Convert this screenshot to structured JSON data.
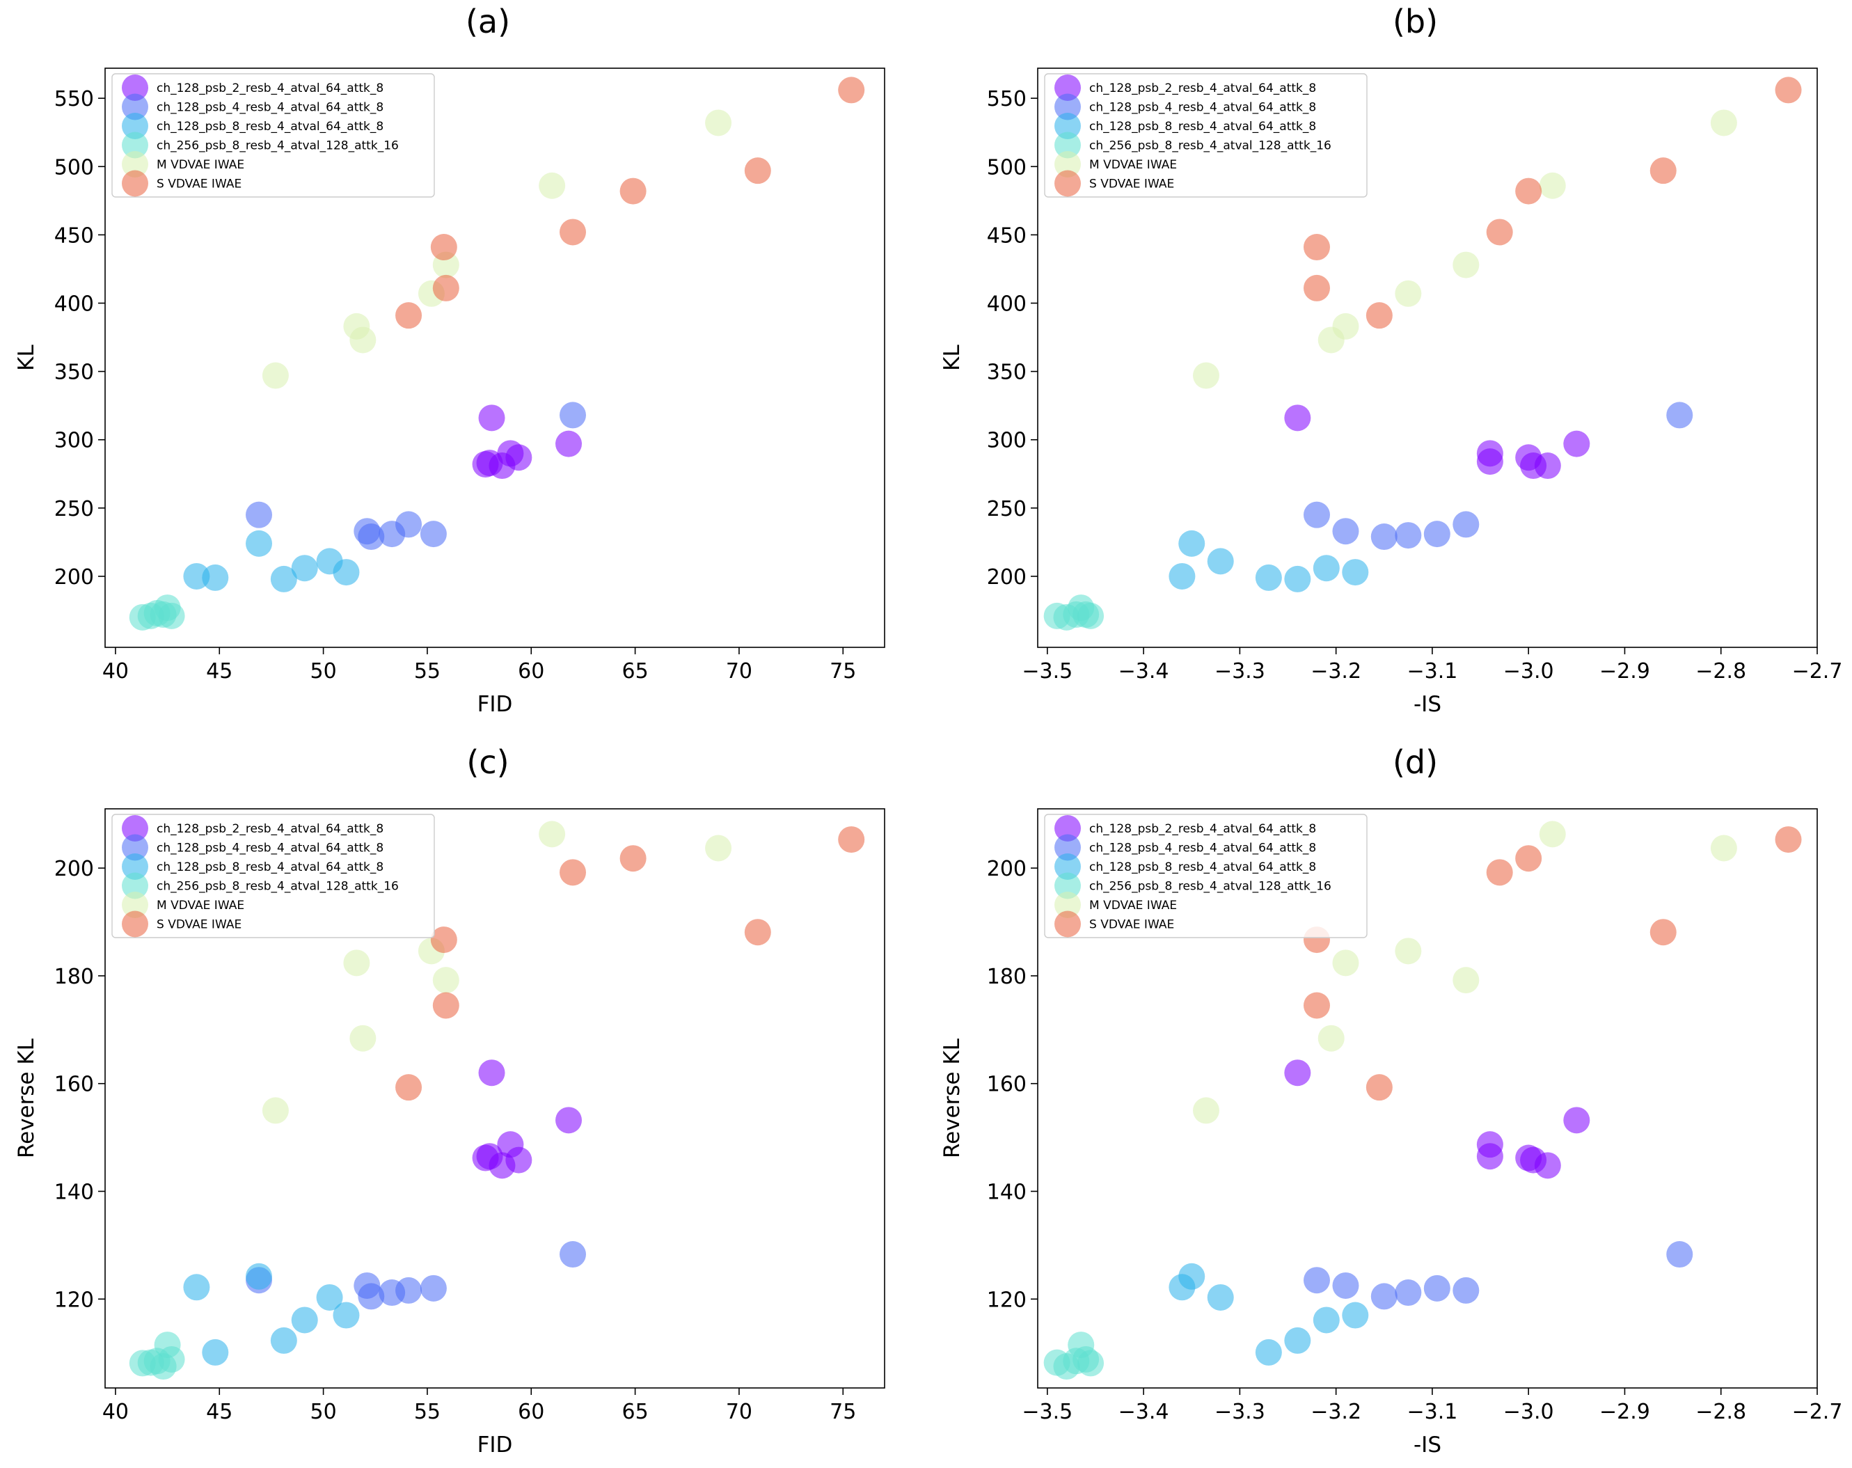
{
  "series_styles": [
    {
      "name": "ch_128_psb_2_resb_4_atval_64_attk_8",
      "color": "#8000ff"
    },
    {
      "name": "ch_128_psb_4_resb_4_atval_64_attk_8",
      "color": "#4a6cf6"
    },
    {
      "name": "ch_128_psb_8_resb_4_atval_64_attk_8",
      "color": "#2ab0eb"
    },
    {
      "name": "ch_256_psb_8_resb_4_atval_128_attk_16",
      "color": "#5ee0d0"
    },
    {
      "name": "M VDVAE IWAE",
      "color": "#d8f0b0"
    },
    {
      "name": "S VDVAE IWAE",
      "color": "#ea6240"
    }
  ],
  "chart_data": [
    {
      "panel": "(a)",
      "type": "scatter",
      "xlabel": "FID",
      "ylabel": "KL",
      "xlim": [
        39.5,
        77
      ],
      "ylim": [
        148,
        572
      ],
      "xticks": [
        40,
        45,
        50,
        55,
        60,
        65,
        70,
        75
      ],
      "xtick_labels": [
        "40",
        "45",
        "50",
        "55",
        "60",
        "65",
        "70",
        "75"
      ],
      "yticks": [
        200,
        250,
        300,
        350,
        400,
        450,
        500,
        550
      ],
      "ytick_labels": [
        "200",
        "250",
        "300",
        "350",
        "400",
        "450",
        "500",
        "550"
      ],
      "legend_position": "upper-left",
      "series": [
        {
          "name": "ch_128_psb_2_resb_4_atval_64_attk_8",
          "x": [
            58.1,
            57.8,
            58.0,
            58.6,
            59.0,
            59.4,
            61.8
          ],
          "y": [
            316,
            282,
            283,
            281,
            290,
            287,
            297
          ]
        },
        {
          "name": "ch_128_psb_4_resb_4_atval_64_attk_8",
          "x": [
            46.9,
            52.1,
            52.3,
            53.3,
            54.1,
            55.3,
            62.0
          ],
          "y": [
            245,
            233,
            229,
            231,
            238,
            231,
            318
          ]
        },
        {
          "name": "ch_128_psb_8_resb_4_atval_64_attk_8",
          "x": [
            43.9,
            44.8,
            46.9,
            48.1,
            49.1,
            50.3,
            51.1
          ],
          "y": [
            200,
            199,
            224,
            198,
            206,
            211,
            203
          ]
        },
        {
          "name": "ch_256_psb_8_resb_4_atval_128_attk_16",
          "x": [
            41.3,
            41.7,
            42.0,
            42.3,
            42.5,
            42.7
          ],
          "y": [
            170,
            171,
            173,
            172,
            177,
            171
          ]
        },
        {
          "name": "M VDVAE IWAE",
          "x": [
            47.7,
            51.6,
            51.9,
            55.2,
            55.9,
            61.0,
            69.0
          ],
          "y": [
            347,
            383,
            373,
            407,
            428,
            486,
            532
          ]
        },
        {
          "name": "S VDVAE IWAE",
          "x": [
            54.1,
            55.8,
            55.9,
            62.0,
            64.9,
            70.9,
            75.4
          ],
          "y": [
            391,
            441,
            411,
            452,
            482,
            497,
            556
          ]
        }
      ]
    },
    {
      "panel": "(b)",
      "type": "scatter",
      "xlabel": "-IS",
      "ylabel": "KL",
      "xlim": [
        -3.51,
        -2.7
      ],
      "ylim": [
        148,
        572
      ],
      "xticks": [
        -3.5,
        -3.4,
        -3.3,
        -3.2,
        -3.1,
        -3.0,
        -2.9,
        -2.8,
        -2.7
      ],
      "xtick_labels": [
        "−3.5",
        "−3.4",
        "−3.3",
        "−3.2",
        "−3.1",
        "−3.0",
        "−2.9",
        "−2.8",
        "−2.7"
      ],
      "yticks": [
        200,
        250,
        300,
        350,
        400,
        450,
        500,
        550
      ],
      "ytick_labels": [
        "200",
        "250",
        "300",
        "350",
        "400",
        "450",
        "500",
        "550"
      ],
      "legend_position": "upper-left",
      "series": [
        {
          "name": "ch_128_psb_2_resb_4_atval_64_attk_8",
          "x": [
            -3.24,
            -3.04,
            -3.04,
            -3.0,
            -2.995,
            -2.98,
            -2.95
          ],
          "y": [
            316,
            290,
            284,
            287,
            281,
            281,
            297
          ]
        },
        {
          "name": "ch_128_psb_4_resb_4_atval_64_attk_8",
          "x": [
            -3.22,
            -3.19,
            -3.15,
            -3.125,
            -3.095,
            -3.065,
            -2.843
          ],
          "y": [
            245,
            233,
            229,
            230,
            231,
            238,
            318
          ]
        },
        {
          "name": "ch_128_psb_8_resb_4_atval_64_attk_8",
          "x": [
            -3.36,
            -3.35,
            -3.32,
            -3.27,
            -3.24,
            -3.21,
            -3.18
          ],
          "y": [
            200,
            224,
            211,
            199,
            198,
            206,
            203
          ]
        },
        {
          "name": "ch_256_psb_8_resb_4_atval_128_attk_16",
          "x": [
            -3.49,
            -3.48,
            -3.47,
            -3.465,
            -3.46,
            -3.455
          ],
          "y": [
            171,
            170,
            172,
            177,
            172,
            171
          ]
        },
        {
          "name": "M VDVAE IWAE",
          "x": [
            -3.335,
            -3.205,
            -3.19,
            -3.125,
            -3.065,
            -2.975,
            -2.797
          ],
          "y": [
            347,
            373,
            383,
            407,
            428,
            486,
            532
          ]
        },
        {
          "name": "S VDVAE IWAE",
          "x": [
            -3.22,
            -3.22,
            -3.155,
            -3.03,
            -3.0,
            -2.86,
            -2.73
          ],
          "y": [
            441,
            411,
            391,
            452,
            482,
            497,
            556
          ]
        }
      ]
    },
    {
      "panel": "(c)",
      "type": "scatter",
      "xlabel": "FID",
      "ylabel": "Reverse KL",
      "xlim": [
        39.5,
        77
      ],
      "ylim": [
        103.5,
        211
      ],
      "xticks": [
        40,
        45,
        50,
        55,
        60,
        65,
        70,
        75
      ],
      "xtick_labels": [
        "40",
        "45",
        "50",
        "55",
        "60",
        "65",
        "70",
        "75"
      ],
      "yticks": [
        120,
        140,
        160,
        180,
        200
      ],
      "ytick_labels": [
        "120",
        "140",
        "160",
        "180",
        "200"
      ],
      "legend_position": "upper-left",
      "series": [
        {
          "name": "ch_128_psb_2_resb_4_atval_64_attk_8",
          "x": [
            58.1,
            57.8,
            58.0,
            58.6,
            59.0,
            59.4,
            61.8
          ],
          "y": [
            162,
            146.2,
            146.5,
            144.8,
            148.7,
            145.8,
            153.2
          ]
        },
        {
          "name": "ch_128_psb_4_resb_4_atval_64_attk_8",
          "x": [
            46.9,
            52.1,
            52.3,
            53.3,
            54.1,
            55.3,
            62.0
          ],
          "y": [
            123.5,
            122.5,
            120.5,
            121.2,
            121.6,
            122.0,
            128.3
          ]
        },
        {
          "name": "ch_128_psb_8_resb_4_atval_64_attk_8",
          "x": [
            43.9,
            44.8,
            46.9,
            48.1,
            49.1,
            50.3,
            51.1
          ],
          "y": [
            122.2,
            110.1,
            124.2,
            112.3,
            116.1,
            120.3,
            117.0
          ]
        },
        {
          "name": "ch_256_psb_8_resb_4_atval_128_attk_16",
          "x": [
            41.3,
            41.7,
            42.0,
            42.3,
            42.5,
            42.7
          ],
          "y": [
            108.1,
            108.2,
            108.5,
            107.5,
            111.5,
            108.8
          ]
        },
        {
          "name": "M VDVAE IWAE",
          "x": [
            47.7,
            51.6,
            51.9,
            55.2,
            55.9,
            61.0,
            69.0
          ],
          "y": [
            155.0,
            182.4,
            168.4,
            184.6,
            179.2,
            206.3,
            203.7
          ]
        },
        {
          "name": "S VDVAE IWAE",
          "x": [
            54.1,
            55.8,
            55.9,
            62.0,
            64.9,
            70.9,
            75.4
          ],
          "y": [
            159.3,
            186.7,
            174.5,
            199.2,
            201.8,
            188.1,
            205.3
          ]
        }
      ]
    },
    {
      "panel": "(d)",
      "type": "scatter",
      "xlabel": "-IS",
      "ylabel": "Reverse KL",
      "xlim": [
        -3.51,
        -2.7
      ],
      "ylim": [
        103.5,
        211
      ],
      "xticks": [
        -3.5,
        -3.4,
        -3.3,
        -3.2,
        -3.1,
        -3.0,
        -2.9,
        -2.8,
        -2.7
      ],
      "xtick_labels": [
        "−3.5",
        "−3.4",
        "−3.3",
        "−3.2",
        "−3.1",
        "−3.0",
        "−2.9",
        "−2.8",
        "−2.7"
      ],
      "yticks": [
        120,
        140,
        160,
        180,
        200
      ],
      "ytick_labels": [
        "120",
        "140",
        "160",
        "180",
        "200"
      ],
      "legend_position": "upper-left",
      "series": [
        {
          "name": "ch_128_psb_2_resb_4_atval_64_attk_8",
          "x": [
            -3.24,
            -3.04,
            -3.04,
            -3.0,
            -2.995,
            -2.98,
            -2.95
          ],
          "y": [
            162,
            148.7,
            146.5,
            146.2,
            145.8,
            144.8,
            153.2
          ]
        },
        {
          "name": "ch_128_psb_4_resb_4_atval_64_attk_8",
          "x": [
            -3.22,
            -3.19,
            -3.15,
            -3.125,
            -3.095,
            -3.065,
            -2.843
          ],
          "y": [
            123.5,
            122.5,
            120.5,
            121.2,
            122.0,
            121.6,
            128.3
          ]
        },
        {
          "name": "ch_128_psb_8_resb_4_atval_64_attk_8",
          "x": [
            -3.36,
            -3.35,
            -3.32,
            -3.27,
            -3.24,
            -3.21,
            -3.18
          ],
          "y": [
            122.2,
            124.2,
            120.3,
            110.1,
            112.3,
            116.1,
            117.0
          ]
        },
        {
          "name": "ch_256_psb_8_resb_4_atval_128_attk_16",
          "x": [
            -3.49,
            -3.48,
            -3.47,
            -3.465,
            -3.46,
            -3.455
          ],
          "y": [
            108.2,
            107.5,
            108.5,
            111.5,
            108.8,
            108.1
          ]
        },
        {
          "name": "M VDVAE IWAE",
          "x": [
            -3.335,
            -3.205,
            -3.19,
            -3.125,
            -3.065,
            -2.975,
            -2.797
          ],
          "y": [
            155.0,
            168.4,
            182.4,
            184.6,
            179.2,
            206.3,
            203.7
          ]
        },
        {
          "name": "S VDVAE IWAE",
          "x": [
            -3.22,
            -3.22,
            -3.155,
            -3.03,
            -3.0,
            -2.86,
            -2.73
          ],
          "y": [
            186.7,
            174.5,
            159.3,
            199.2,
            201.8,
            188.1,
            205.3
          ]
        }
      ]
    }
  ]
}
